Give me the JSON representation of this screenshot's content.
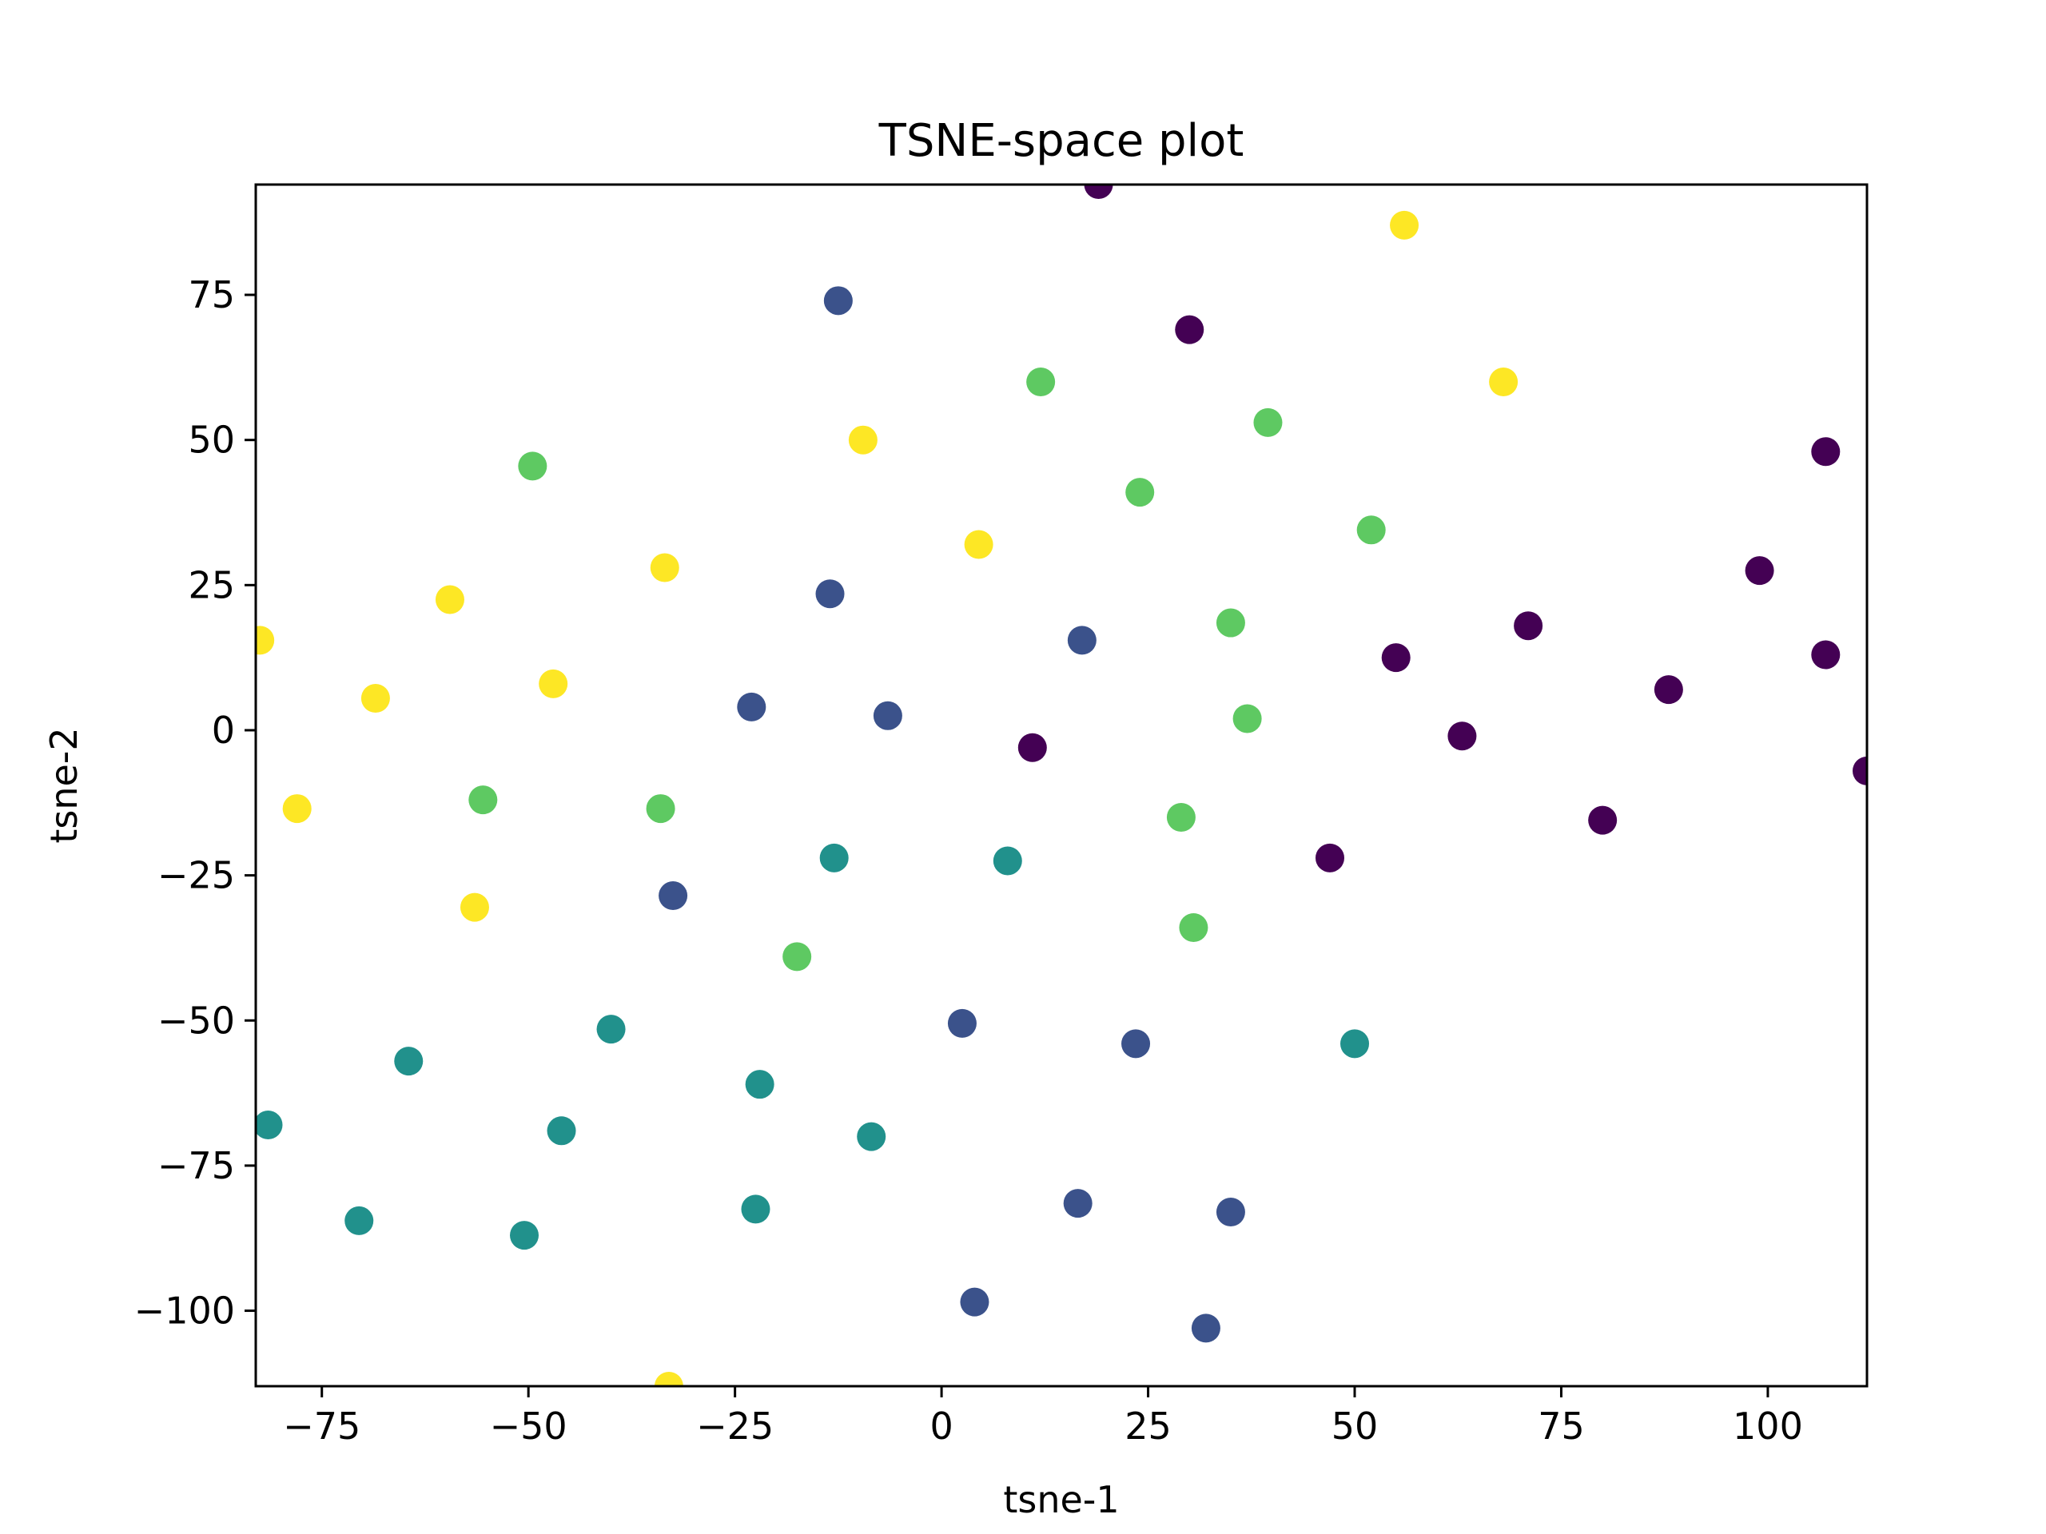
{
  "chart_data": {
    "type": "scatter",
    "title": "TSNE-space plot",
    "xlabel": "tsne-1",
    "ylabel": "tsne-2",
    "xlim": [
      -83,
      112
    ],
    "ylim": [
      -113,
      94
    ],
    "xticks": [
      -75,
      -50,
      -25,
      0,
      25,
      50,
      75,
      100
    ],
    "yticks": [
      -100,
      -75,
      -50,
      -25,
      0,
      25,
      50,
      75
    ],
    "xtick_labels": [
      "−75",
      "−50",
      "−25",
      "0",
      "25",
      "50",
      "75",
      "100"
    ],
    "ytick_labels": [
      "−100",
      "−75",
      "−50",
      "−25",
      "0",
      "25",
      "50",
      "75"
    ],
    "grid": false,
    "legend": "none",
    "colors": {
      "c0": "#440154",
      "c1": "#3b528b",
      "c2": "#21918c",
      "c3": "#5ec962",
      "c4": "#fde725"
    },
    "groups": [
      {
        "color_key": "c0",
        "points": [
          [
            19,
            94
          ],
          [
            30,
            69
          ],
          [
            107,
            48
          ],
          [
            99,
            27.5
          ],
          [
            71,
            18
          ],
          [
            107,
            13
          ],
          [
            55,
            12.5
          ],
          [
            88,
            7
          ],
          [
            63,
            -1
          ],
          [
            11,
            -3
          ],
          [
            112,
            -7
          ],
          [
            80,
            -15.5
          ],
          [
            47,
            -22
          ]
        ]
      },
      {
        "color_key": "c1",
        "points": [
          [
            -12.5,
            74
          ],
          [
            -13.5,
            23.5
          ],
          [
            17,
            15.5
          ],
          [
            -23,
            4
          ],
          [
            -6.5,
            2.5
          ],
          [
            -32.5,
            -28.5
          ],
          [
            2.5,
            -50.5
          ],
          [
            23.5,
            -54
          ],
          [
            16.5,
            -81.5
          ],
          [
            35,
            -83
          ],
          [
            4,
            -98.5
          ],
          [
            32,
            -103
          ]
        ]
      },
      {
        "color_key": "c2",
        "points": [
          [
            -13,
            -22
          ],
          [
            8,
            -22.5
          ],
          [
            -40,
            -51.5
          ],
          [
            -64.5,
            -57
          ],
          [
            -22,
            -61
          ],
          [
            50,
            -54
          ],
          [
            -81.5,
            -68
          ],
          [
            -46,
            -69
          ],
          [
            -8.5,
            -70
          ],
          [
            -70.5,
            -84.5
          ],
          [
            -22.5,
            -82.5
          ],
          [
            -50.5,
            -87
          ]
        ]
      },
      {
        "color_key": "c3",
        "points": [
          [
            12,
            60
          ],
          [
            39.5,
            53
          ],
          [
            -49.5,
            45.5
          ],
          [
            24,
            41
          ],
          [
            52,
            34.5
          ],
          [
            35,
            18.5
          ],
          [
            37,
            2
          ],
          [
            -55.5,
            -12
          ],
          [
            -34,
            -13.5
          ],
          [
            29,
            -15
          ],
          [
            30.5,
            -34
          ],
          [
            -17.5,
            -39
          ]
        ]
      },
      {
        "color_key": "c4",
        "points": [
          [
            56,
            87
          ],
          [
            68,
            60
          ],
          [
            -9.5,
            50
          ],
          [
            4.5,
            32
          ],
          [
            -33.5,
            28
          ],
          [
            -59.5,
            22.5
          ],
          [
            -82.5,
            15.5
          ],
          [
            -47,
            8
          ],
          [
            -68.5,
            5.5
          ],
          [
            -78,
            -13.5
          ],
          [
            -56.5,
            -30.5
          ],
          [
            -33,
            -113
          ]
        ]
      }
    ]
  }
}
